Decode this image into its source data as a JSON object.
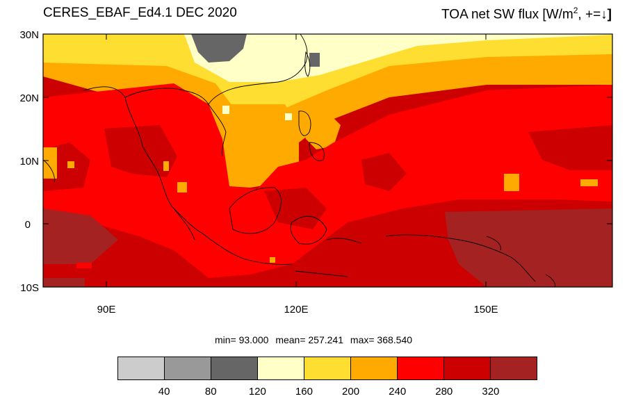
{
  "title_left": "CERES_EBAF_Ed4.1 DEC 2020",
  "title_right": {
    "prefix": "TOA net SW flux [W/m",
    "sup": "2",
    "suffix": ", +=",
    "arrow": "↓",
    "close": "]"
  },
  "lat_labels": [
    "30N",
    "20N",
    "10N",
    "0",
    "10S"
  ],
  "lon_labels": [
    "90E",
    "120E",
    "150E"
  ],
  "stats": {
    "min": "min=  93.000",
    "mean": "mean= 257.241",
    "max": "max= 368.540"
  },
  "legend": {
    "colors": [
      "#cccccc",
      "#999999",
      "#666666",
      "#ffffc8",
      "#ffde32",
      "#ffaa00",
      "#ff0000",
      "#cc0000",
      "#a52222"
    ],
    "labels": [
      "40",
      "80",
      "120",
      "160",
      "200",
      "240",
      "280",
      "320"
    ]
  },
  "map_extent": {
    "lon": [
      80,
      170
    ],
    "lat": [
      -10,
      30
    ]
  },
  "colors": {
    "background": "#ffffff",
    "frame": "#000000"
  }
}
